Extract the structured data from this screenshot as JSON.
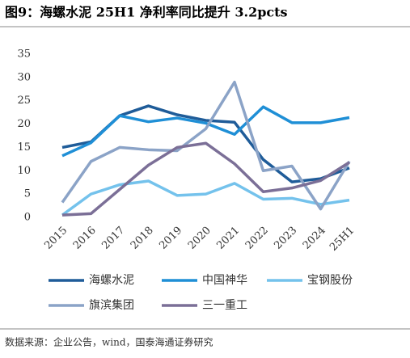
{
  "chart_data": {
    "type": "line",
    "title": "图9：海螺水泥 25H1 净利率同比提升 3.2pcts",
    "source": "数据来源：企业公告，wind，国泰海通证券研究",
    "categories": [
      "2015",
      "2016",
      "2017",
      "2018",
      "2019",
      "2020",
      "2021",
      "2022",
      "2023",
      "2024",
      "25H1"
    ],
    "ylim": [
      0,
      35
    ],
    "yticks": [
      0,
      5,
      10,
      15,
      20,
      25,
      30,
      35
    ],
    "grid": false,
    "series": [
      {
        "name": "海螺水泥",
        "color": "#1f5c99",
        "values": [
          15,
          16.2,
          21.8,
          23.9,
          22,
          20.8,
          20.4,
          12.4,
          7.6,
          8.3,
          10.6
        ]
      },
      {
        "name": "中国神华",
        "color": "#1f8fd6",
        "values": [
          13.2,
          16,
          21.8,
          20.5,
          21.3,
          20.2,
          17.8,
          23.7,
          20.3,
          20.3,
          21.4
        ]
      },
      {
        "name": "宝钢股份",
        "color": "#74c2ec",
        "values": [
          0.5,
          5,
          7,
          7.8,
          4.7,
          5,
          7.3,
          3.9,
          4.1,
          2.8,
          3.7
        ]
      },
      {
        "name": "旗滨集团",
        "color": "#8ba3c7",
        "values": [
          3.2,
          12,
          15,
          14.5,
          14.3,
          19,
          29,
          10,
          11,
          1.8,
          12
        ]
      },
      {
        "name": "三一重工",
        "color": "#7b6f97",
        "values": [
          0.5,
          0.8,
          6,
          11.2,
          15,
          15.9,
          11.5,
          5.5,
          6.3,
          7.9,
          11.8
        ]
      }
    ]
  }
}
